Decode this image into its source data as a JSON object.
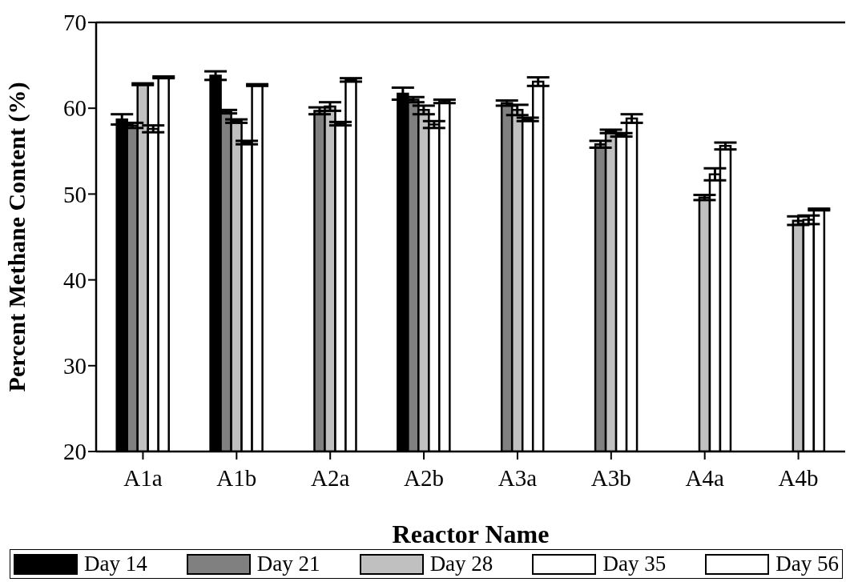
{
  "chart_data": {
    "type": "bar",
    "xlabel": "Reactor Name",
    "ylabel": "Percent Methane Content (%)",
    "categories": [
      "A1a",
      "A1b",
      "A2a",
      "A2b",
      "A3a",
      "A3b",
      "A4a",
      "A4b"
    ],
    "series": [
      {
        "name": "Day 14",
        "color": "#000000",
        "values": [
          58.7,
          63.8,
          null,
          61.7,
          null,
          null,
          null,
          null
        ],
        "errors": [
          0.6,
          0.5,
          null,
          0.7,
          null,
          null,
          null,
          null
        ]
      },
      {
        "name": "Day 21",
        "color": "#808080",
        "values": [
          58.0,
          59.6,
          59.7,
          61.0,
          60.6,
          55.8,
          null,
          null
        ],
        "errors": [
          0.3,
          0.2,
          0.4,
          0.3,
          0.3,
          0.4,
          null,
          null
        ]
      },
      {
        "name": "Day 28",
        "color": "#c0c0c0",
        "values": [
          62.8,
          58.5,
          60.2,
          59.8,
          59.8,
          57.3,
          49.6,
          46.9
        ],
        "errors": [
          0.1,
          0.2,
          0.5,
          0.5,
          0.6,
          0.2,
          0.3,
          0.5
        ]
      },
      {
        "name": "Day 35",
        "color": "#ffffff",
        "values": [
          57.6,
          56.0,
          58.2,
          58.1,
          58.7,
          56.9,
          52.3,
          47.0
        ],
        "errors": [
          0.4,
          0.2,
          0.2,
          0.4,
          0.2,
          0.2,
          0.7,
          0.5
        ]
      },
      {
        "name": "Day 56",
        "color": "#ffffff",
        "values": [
          63.6,
          62.7,
          63.3,
          60.8,
          63.1,
          58.8,
          55.6,
          48.2
        ],
        "errors": [
          0.1,
          0.1,
          0.2,
          0.2,
          0.5,
          0.5,
          0.4,
          0.1
        ]
      }
    ],
    "ylim": [
      20,
      70
    ],
    "yticks": [
      20,
      30,
      40,
      50,
      60,
      70
    ],
    "legend": "bottom"
  }
}
